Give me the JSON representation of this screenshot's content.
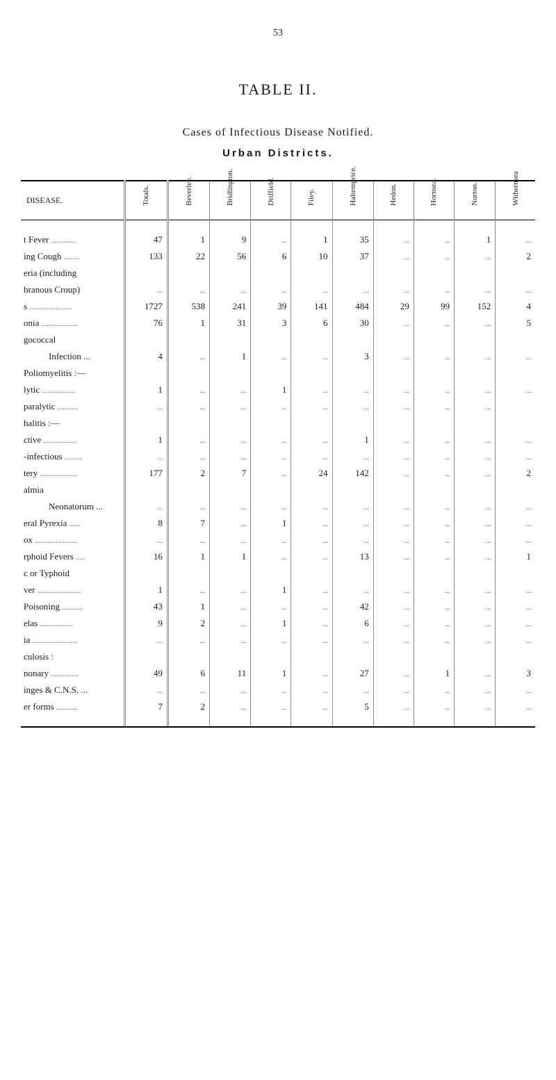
{
  "page_number": "53",
  "table_label": "TABLE II.",
  "subtitle1": "Cases of Infectious Disease Notified.",
  "subtitle2": "Urban Districts.",
  "headers": {
    "disease": "DISEASE.",
    "totals": "Totals.",
    "beverley": "Beverley.",
    "bridlington": "Bridlington.",
    "driffield": "Driffield.",
    "filey": "Filey.",
    "haltemprice": "Haltemprice.",
    "hedon": "Hedon.",
    "hornsea": "Hornsea.",
    "norton": "Norton.",
    "withernsea": "Withernsea"
  },
  "rows": [
    {
      "name": "t Fever",
      "dots": "..............",
      "values": [
        "47",
        "1",
        "9",
        "...",
        "1",
        "35",
        "...",
        "...",
        "1",
        "..."
      ]
    },
    {
      "name": "ing Cough",
      "dots": ".........",
      "values": [
        "133",
        "22",
        "56",
        "6",
        "10",
        "37",
        "...",
        "...",
        "...",
        "2"
      ]
    },
    {
      "name": "eria (including",
      "dots": "",
      "values": [
        "",
        "",
        "",
        "",
        "",
        "",
        "",
        "",
        "",
        ""
      ]
    },
    {
      "name": "branous Croup)",
      "dots": "",
      "values": [
        "...",
        "...",
        "...",
        "...",
        "...",
        "...",
        "...",
        "...",
        "...",
        "..."
      ]
    },
    {
      "name": "s",
      "dots": "........................",
      "values": [
        "1727",
        "538",
        "241",
        "39",
        "141",
        "484",
        "29",
        "99",
        "152",
        "4"
      ]
    },
    {
      "name": "onia",
      "dots": ".....................",
      "values": [
        "76",
        "1",
        "31",
        "3",
        "6",
        "30",
        "...",
        "...",
        "...",
        "5"
      ]
    },
    {
      "name": "gococcal",
      "dots": "",
      "values": [
        "",
        "",
        "",
        "",
        "",
        "",
        "",
        "",
        "",
        ""
      ]
    },
    {
      "name": "Infection ...",
      "dots": "",
      "indent": true,
      "values": [
        "4",
        "...",
        "1",
        "...",
        "...",
        "3",
        "...",
        "...",
        "...",
        "..."
      ]
    },
    {
      "name": "Poliomyelitis :—",
      "dots": "",
      "values": [
        "",
        "",
        "",
        "",
        "",
        "",
        "",
        "",
        "",
        ""
      ]
    },
    {
      "name": "lytic",
      "dots": "...................",
      "values": [
        "1",
        "...",
        "...",
        "1",
        "...",
        "...",
        "...",
        "...",
        "...",
        "..."
      ]
    },
    {
      "name": "paralytic",
      "dots": "............",
      "values": [
        "...",
        "...",
        "...",
        "...",
        "...",
        "...",
        "...",
        "...",
        "...",
        ""
      ]
    },
    {
      "name": "halitis :—",
      "dots": "",
      "values": [
        "",
        "",
        "",
        "",
        "",
        "",
        "",
        "",
        "",
        ""
      ]
    },
    {
      "name": "ctive",
      "dots": "...................",
      "values": [
        "1",
        "...",
        "...",
        "...",
        "...",
        "1",
        "...",
        "...",
        "...",
        "..."
      ]
    },
    {
      "name": "-infectious",
      "dots": "..........",
      "values": [
        "...",
        "...",
        "...",
        "...",
        "...",
        "...",
        "...",
        "...",
        "...",
        "..."
      ]
    },
    {
      "name": "tery",
      "dots": "......................",
      "values": [
        "177",
        "2",
        "7",
        "...",
        "24",
        "142",
        "...",
        "...",
        "...",
        "2"
      ]
    },
    {
      "name": "almia",
      "dots": "",
      "values": [
        "",
        "",
        "",
        "",
        "",
        "",
        "",
        "",
        "",
        ""
      ]
    },
    {
      "name": "Neonatorum ...",
      "dots": "",
      "indent": true,
      "values": [
        "...",
        "...",
        "...",
        "...",
        "...",
        "...",
        "...",
        "...",
        "...",
        "..."
      ]
    },
    {
      "name": "eral Pyrexia",
      "dots": "......",
      "values": [
        "8",
        "7",
        "...",
        "1",
        "...",
        "...",
        "...",
        "...",
        "...",
        "..."
      ]
    },
    {
      "name": "ox",
      "dots": "........................",
      "values": [
        "...",
        "...",
        "...",
        "...",
        "...",
        "...",
        "...",
        "...",
        "...",
        "..."
      ]
    },
    {
      "name": "rphoid Fevers",
      "dots": ".....",
      "values": [
        "16",
        "1",
        "1",
        "...",
        "...",
        "13",
        "...",
        "...",
        "...",
        "1"
      ]
    },
    {
      "name": "c or Typhoid",
      "dots": "",
      "values": [
        "",
        "",
        "",
        "",
        "",
        "",
        "",
        "",
        "",
        ""
      ]
    },
    {
      "name": "ver",
      "dots": ".........................",
      "values": [
        "1",
        "...",
        "...",
        "1",
        "...",
        "...",
        "...",
        "...",
        "...",
        "..."
      ]
    },
    {
      "name": "Poisoning",
      "dots": "............",
      "values": [
        "43",
        "1",
        "...",
        "...",
        "...",
        "42",
        "...",
        "...",
        "...",
        "..."
      ]
    },
    {
      "name": "elas",
      "dots": "...................",
      "values": [
        "9",
        "2",
        "...",
        "1",
        "...",
        "6",
        "...",
        "...",
        "...",
        "..."
      ]
    },
    {
      "name": "ia",
      "dots": "..........................",
      "values": [
        "...",
        "...",
        "...",
        "...",
        "...",
        "...",
        "...",
        "...",
        "...",
        "..."
      ]
    },
    {
      "name": "culosis :",
      "dots": "",
      "values": [
        "",
        "",
        "",
        "",
        "",
        "",
        "",
        "",
        "",
        ""
      ]
    },
    {
      "name": "nonary",
      "dots": "................",
      "values": [
        "49",
        "6",
        "11",
        "1",
        "...",
        "27",
        "...",
        "1",
        "...",
        "3"
      ]
    },
    {
      "name": "inges & C.N.S. ...",
      "dots": "",
      "values": [
        "...",
        "...",
        "...",
        "...",
        "...",
        "...",
        "...",
        "...",
        "...",
        "..."
      ]
    },
    {
      "name": "er forms",
      "dots": "............",
      "values": [
        "7",
        "2",
        "...",
        "...",
        "...",
        "5",
        "...",
        "...",
        "...",
        "..."
      ]
    }
  ]
}
